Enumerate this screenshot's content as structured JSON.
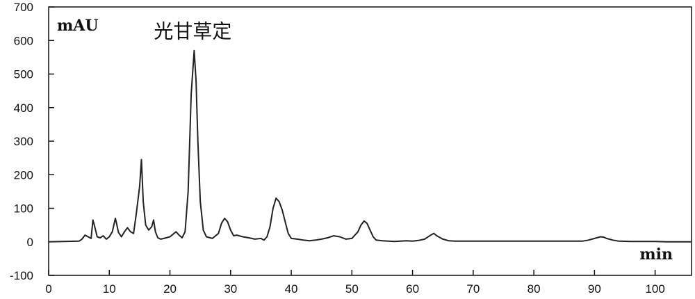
{
  "chart_data": {
    "type": "line",
    "title": "",
    "ylabel": "mAU",
    "xlabel": "min",
    "xlim": [
      0,
      106
    ],
    "ylim": [
      -100,
      700
    ],
    "xticks": [
      0,
      10,
      20,
      30,
      40,
      50,
      60,
      70,
      80,
      90,
      100
    ],
    "yticks": [
      -100,
      0,
      100,
      200,
      300,
      400,
      500,
      600,
      700
    ],
    "grid": false,
    "series_color": "#222222",
    "annotations": [
      {
        "text": "光甘草定",
        "x": 24.0,
        "y": 570
      }
    ],
    "series": [
      {
        "x": [
          0,
          5,
          5.5,
          6,
          6.5,
          7,
          7.3,
          7.6,
          8,
          8.5,
          9,
          9.5,
          10,
          10.5,
          11,
          11.2,
          11.5,
          12,
          12.5,
          13,
          13.5,
          14,
          14.5,
          15,
          15.3,
          15.6,
          16,
          16.5,
          17,
          17.3,
          17.6,
          18,
          18.5,
          19,
          20,
          21,
          21.5,
          22,
          22.5,
          23,
          23.5,
          24,
          24.3,
          24.6,
          25,
          25.5,
          26,
          27,
          28,
          28.5,
          29,
          29.5,
          30,
          30.5,
          31,
          32,
          33,
          34,
          35,
          35.5,
          36,
          36.5,
          37,
          37.5,
          38,
          38.5,
          39,
          39.5,
          40,
          41,
          42,
          43,
          44,
          45,
          46,
          47,
          48,
          49,
          50,
          51,
          51.5,
          52,
          52.5,
          53,
          53.5,
          54,
          55,
          56,
          57,
          58,
          59,
          60,
          61,
          62,
          63,
          63.5,
          64,
          65,
          66,
          67,
          68,
          70,
          72,
          74,
          76,
          78,
          80,
          82,
          84,
          86,
          88,
          89,
          90,
          91,
          91.5,
          92,
          93,
          94,
          96,
          98,
          100,
          102,
          104,
          106
        ],
        "y": [
          0,
          2,
          8,
          20,
          15,
          10,
          65,
          45,
          15,
          12,
          18,
          8,
          15,
          30,
          70,
          55,
          28,
          15,
          30,
          42,
          30,
          25,
          90,
          165,
          245,
          120,
          50,
          35,
          45,
          65,
          30,
          12,
          8,
          10,
          15,
          30,
          20,
          12,
          30,
          150,
          440,
          570,
          480,
          300,
          120,
          35,
          15,
          10,
          25,
          55,
          70,
          60,
          35,
          18,
          20,
          15,
          12,
          8,
          10,
          5,
          15,
          45,
          100,
          130,
          120,
          95,
          60,
          25,
          10,
          8,
          5,
          3,
          5,
          8,
          12,
          18,
          15,
          8,
          10,
          30,
          50,
          62,
          55,
          35,
          15,
          5,
          3,
          2,
          1,
          2,
          3,
          2,
          4,
          8,
          20,
          25,
          18,
          8,
          3,
          2,
          2,
          2,
          2,
          2,
          2,
          2,
          2,
          2,
          2,
          2,
          2,
          5,
          10,
          15,
          14,
          10,
          5,
          2,
          1,
          1,
          1,
          0,
          0,
          0
        ]
      }
    ]
  }
}
